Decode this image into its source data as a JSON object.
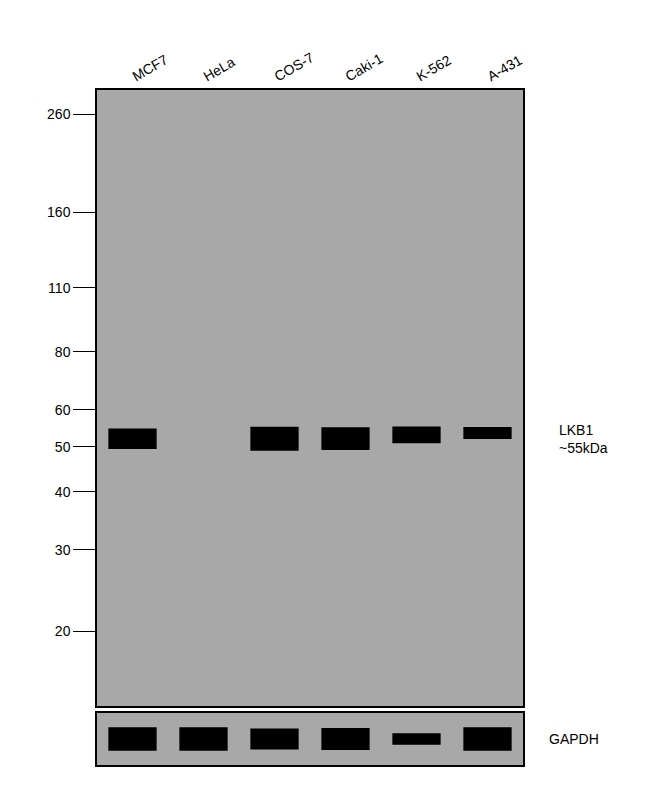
{
  "chart_data": {
    "type": "blot",
    "categories": [
      "MCF7",
      "HeLa",
      "COS-7",
      "Caki-1",
      "K-562",
      "A-431"
    ],
    "series": [
      {
        "name": "LKB1",
        "size_label": "~55kDa",
        "color": "#000000",
        "values": [
          52,
          null,
          52,
          52,
          53,
          53.5
        ],
        "intensity": [
          0.85,
          0,
          1.0,
          0.95,
          0.7,
          0.5
        ]
      },
      {
        "name": "GAPDH",
        "color": "#000000",
        "intensity": [
          0.9,
          0.9,
          0.8,
          0.85,
          0.45,
          0.9
        ]
      }
    ],
    "log": "y",
    "ylim": [
      13.8,
      293
    ],
    "yticks": [
      260,
      160,
      110,
      80,
      60,
      50,
      40,
      30,
      20
    ],
    "color": "#a8a8a8",
    "grid": false
  }
}
